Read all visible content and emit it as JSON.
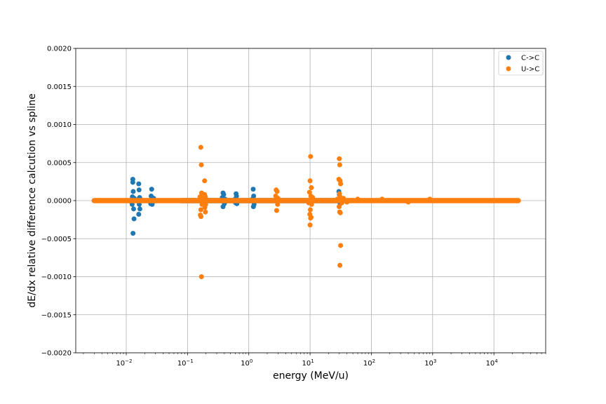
{
  "chart_data": {
    "type": "scatter",
    "title": "",
    "xlabel": "energy (MeV/u)",
    "ylabel": "dE/dx relative difference calcution vs spline",
    "x_scale": "log",
    "xlim": [
      0.0015,
      70000
    ],
    "ylim": [
      -0.002,
      0.002
    ],
    "grid": true,
    "legend_position": "upper-right",
    "x_ticks": [
      {
        "value": 0.01,
        "base": "10",
        "exp": "−2"
      },
      {
        "value": 0.1,
        "base": "10",
        "exp": "−1"
      },
      {
        "value": 1,
        "base": "10",
        "exp": "0"
      },
      {
        "value": 10,
        "base": "10",
        "exp": "1"
      },
      {
        "value": 100,
        "base": "10",
        "exp": "2"
      },
      {
        "value": 1000,
        "base": "10",
        "exp": "3"
      },
      {
        "value": 10000,
        "base": "10",
        "exp": "4"
      }
    ],
    "y_ticks": [
      {
        "value": 0.002,
        "label": "0.0020"
      },
      {
        "value": 0.0015,
        "label": "0.0015"
      },
      {
        "value": 0.001,
        "label": "0.0010"
      },
      {
        "value": 0.0005,
        "label": "0.0005"
      },
      {
        "value": 0,
        "label": "0.0000"
      },
      {
        "value": -0.0005,
        "label": "−0.0005"
      },
      {
        "value": -0.001,
        "label": "−0.0010"
      },
      {
        "value": -0.0015,
        "label": "−0.0015"
      },
      {
        "value": -0.002,
        "label": "−0.0020"
      }
    ],
    "series": [
      {
        "name": "C->C",
        "color": "#1f77b4",
        "baseline": {
          "x_start": 0.08,
          "x_end": 30,
          "y": 0
        },
        "points": [
          [
            0.0128,
            0.00028
          ],
          [
            0.0128,
            0.00024
          ],
          [
            0.013,
            0.00012
          ],
          [
            0.0126,
            5e-05
          ],
          [
            0.0125,
            -5e-05
          ],
          [
            0.0132,
            -0.00011
          ],
          [
            0.0134,
            -0.00024
          ],
          [
            0.0129,
            -0.00043
          ],
          [
            0.0135,
            3e-05
          ],
          [
            0.0122,
            -2e-05
          ],
          [
            0.016,
            0.00022
          ],
          [
            0.0162,
            0.00014
          ],
          [
            0.0165,
            4e-05
          ],
          [
            0.0158,
            -1e-05
          ],
          [
            0.0163,
            -5e-05
          ],
          [
            0.0167,
            -0.00011
          ],
          [
            0.016,
            -0.00018
          ],
          [
            0.017,
            2e-05
          ],
          [
            0.0155,
            1e-05
          ],
          [
            0.026,
            0.00015
          ],
          [
            0.0255,
            6e-05
          ],
          [
            0.027,
            -2e-05
          ],
          [
            0.0265,
            -5e-05
          ],
          [
            0.025,
            -4e-05
          ],
          [
            0.028,
            3e-05
          ],
          [
            0.19,
            5e-05
          ],
          [
            0.18,
            -3e-05
          ],
          [
            0.2,
            2e-05
          ],
          [
            0.38,
            0.0001
          ],
          [
            0.39,
            8e-05
          ],
          [
            0.37,
            4e-05
          ],
          [
            0.4,
            -4e-05
          ],
          [
            0.38,
            -8e-05
          ],
          [
            0.41,
            2e-05
          ],
          [
            0.62,
            9e-05
          ],
          [
            0.63,
            6e-05
          ],
          [
            0.6,
            2e-05
          ],
          [
            0.64,
            -4e-05
          ],
          [
            0.61,
            -3e-05
          ],
          [
            1.18,
            0.00015
          ],
          [
            1.2,
            6e-05
          ],
          [
            1.15,
            2e-05
          ],
          [
            1.22,
            -5e-05
          ],
          [
            1.19,
            -8e-05
          ],
          [
            29.5,
            0.00012
          ],
          [
            30,
            8e-05
          ],
          [
            31,
            -4e-05
          ]
        ]
      },
      {
        "name": "U->C",
        "color": "#ff7f0e",
        "baseline": {
          "x_start": 0.003,
          "x_end": 25000,
          "y": 0
        },
        "points": [
          [
            0.165,
            0.0007
          ],
          [
            0.168,
            0.00047
          ],
          [
            0.17,
            0.0001
          ],
          [
            0.16,
            5e-05
          ],
          [
            0.172,
            -5e-05
          ],
          [
            0.165,
            -0.00012
          ],
          [
            0.162,
            -0.00019
          ],
          [
            0.166,
            -0.00021
          ],
          [
            0.169,
            -0.001
          ],
          [
            0.175,
            3e-05
          ],
          [
            0.19,
            0.00026
          ],
          [
            0.19,
            8e-05
          ],
          [
            0.195,
            5e-05
          ],
          [
            0.185,
            4e-05
          ],
          [
            0.198,
            -5e-05
          ],
          [
            0.192,
            -9e-05
          ],
          [
            0.196,
            -0.00015
          ],
          [
            0.2,
            2e-05
          ],
          [
            0.18,
            -2e-05
          ],
          [
            2.8,
            0.00014
          ],
          [
            2.9,
            0.00012
          ],
          [
            2.75,
            6e-05
          ],
          [
            2.95,
            -5e-05
          ],
          [
            2.85,
            -0.00013
          ],
          [
            3.0,
            3e-05
          ],
          [
            10.2,
            0.00058
          ],
          [
            10,
            0.00026
          ],
          [
            10.5,
            0.00017
          ],
          [
            9.8,
            0.00011
          ],
          [
            10.3,
            6e-05
          ],
          [
            10.6,
            -5e-05
          ],
          [
            10.1,
            -0.00012
          ],
          [
            9.9,
            -0.00018
          ],
          [
            10.4,
            -0.00022
          ],
          [
            10.2,
            -0.00023
          ],
          [
            10,
            -0.00032
          ],
          [
            11,
            4e-05
          ],
          [
            9.5,
            -3e-05
          ],
          [
            30,
            0.00055
          ],
          [
            30.5,
            0.00047
          ],
          [
            29.5,
            0.00028
          ],
          [
            31,
            0.00026
          ],
          [
            31.5,
            0.00022
          ],
          [
            30.2,
            9e-05
          ],
          [
            30.8,
            5e-05
          ],
          [
            29.8,
            -8e-05
          ],
          [
            30.4,
            -0.00015
          ],
          [
            31.2,
            -0.00016
          ],
          [
            31.5,
            -0.00059
          ],
          [
            30.7,
            -0.00085
          ],
          [
            28,
            2e-05
          ],
          [
            33,
            -3e-05
          ],
          [
            35,
            3e-05
          ],
          [
            40,
            -2e-05
          ],
          [
            60,
            2e-05
          ],
          [
            150,
            2e-05
          ],
          [
            400,
            -2e-05
          ],
          [
            900,
            2e-05
          ]
        ]
      }
    ]
  }
}
